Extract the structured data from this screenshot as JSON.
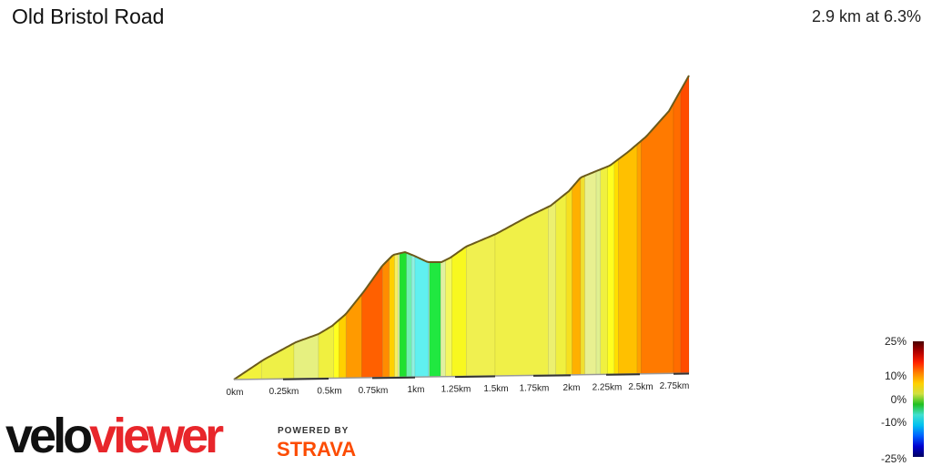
{
  "title": "Old Bristol Road",
  "summary": "2.9 km at 6.3%",
  "chart_data": {
    "type": "area",
    "title": "Old Bristol Road",
    "subtitle": "2.9 km at 6.3%",
    "distance_km": 2.9,
    "average_gradient_pct": 6.3,
    "x_ticks": [
      "0km",
      "0.25km",
      "0.5km",
      "0.75km",
      "1km",
      "1.25km",
      "1.5km",
      "1.75km",
      "2km",
      "2.25km",
      "2.5km",
      "2.75km"
    ],
    "segments": [
      {
        "from": 0,
        "to": 0.14,
        "color": "#f2f23c"
      },
      {
        "from": 0.14,
        "to": 0.31,
        "color": "#eef047"
      },
      {
        "from": 0.31,
        "to": 0.445,
        "color": "#e6f080"
      },
      {
        "from": 0.445,
        "to": 0.53,
        "color": "#f0f040"
      },
      {
        "from": 0.53,
        "to": 0.56,
        "color": "#ffff20"
      },
      {
        "from": 0.56,
        "to": 0.6,
        "color": "#ffd000"
      },
      {
        "from": 0.6,
        "to": 0.69,
        "color": "#ff9a00"
      },
      {
        "from": 0.69,
        "to": 0.81,
        "color": "#ff6000"
      },
      {
        "from": 0.81,
        "to": 0.85,
        "color": "#ff8c00"
      },
      {
        "from": 0.85,
        "to": 0.88,
        "color": "#ffd000"
      },
      {
        "from": 0.88,
        "to": 0.9,
        "color": "#f6f060"
      },
      {
        "from": 0.9,
        "to": 0.91,
        "color": "#e0f0a0"
      },
      {
        "from": 0.91,
        "to": 0.95,
        "color": "#20e030"
      },
      {
        "from": 0.95,
        "to": 0.98,
        "color": "#70f0b0"
      },
      {
        "from": 0.98,
        "to": 1.0,
        "color": "#90f0e0"
      },
      {
        "from": 1.0,
        "to": 1.085,
        "color": "#60f0f0"
      },
      {
        "from": 1.085,
        "to": 1.09,
        "color": "#c0f0e0"
      },
      {
        "from": 1.09,
        "to": 1.16,
        "color": "#20e840"
      },
      {
        "from": 1.16,
        "to": 1.19,
        "color": "#e0f0a0"
      },
      {
        "from": 1.19,
        "to": 1.23,
        "color": "#f4f860"
      },
      {
        "from": 1.23,
        "to": 1.32,
        "color": "#f8f820"
      },
      {
        "from": 1.32,
        "to": 1.5,
        "color": "#f0f050"
      },
      {
        "from": 1.5,
        "to": 1.85,
        "color": "#f0f048"
      },
      {
        "from": 1.85,
        "to": 1.9,
        "color": "#ecf070"
      },
      {
        "from": 1.9,
        "to": 1.97,
        "color": "#f0f040"
      },
      {
        "from": 1.97,
        "to": 2.01,
        "color": "#f6e020"
      },
      {
        "from": 2.01,
        "to": 2.07,
        "color": "#ffb000"
      },
      {
        "from": 2.07,
        "to": 2.1,
        "color": "#f0e030"
      },
      {
        "from": 2.1,
        "to": 2.18,
        "color": "#e8f090"
      },
      {
        "from": 2.18,
        "to": 2.21,
        "color": "#e0f090"
      },
      {
        "from": 2.21,
        "to": 2.26,
        "color": "#f0f040"
      },
      {
        "from": 2.26,
        "to": 2.31,
        "color": "#ffff20"
      },
      {
        "from": 2.31,
        "to": 2.34,
        "color": "#ffe000"
      },
      {
        "from": 2.34,
        "to": 2.48,
        "color": "#ffc000"
      },
      {
        "from": 2.48,
        "to": 2.51,
        "color": "#ffa000"
      },
      {
        "from": 2.51,
        "to": 2.75,
        "color": "#ff7a00"
      },
      {
        "from": 2.75,
        "to": 2.82,
        "color": "#ff6c00"
      },
      {
        "from": 2.82,
        "to": 2.9,
        "color": "#ff4c00"
      }
    ],
    "gradient_legend": [
      "25%",
      "10%",
      "0%",
      "-10%",
      "-25%"
    ]
  },
  "branding": {
    "logo_part1": "velo",
    "logo_part2": "viewer",
    "powered_by": "POWERED BY",
    "strava": "STRAVA"
  }
}
